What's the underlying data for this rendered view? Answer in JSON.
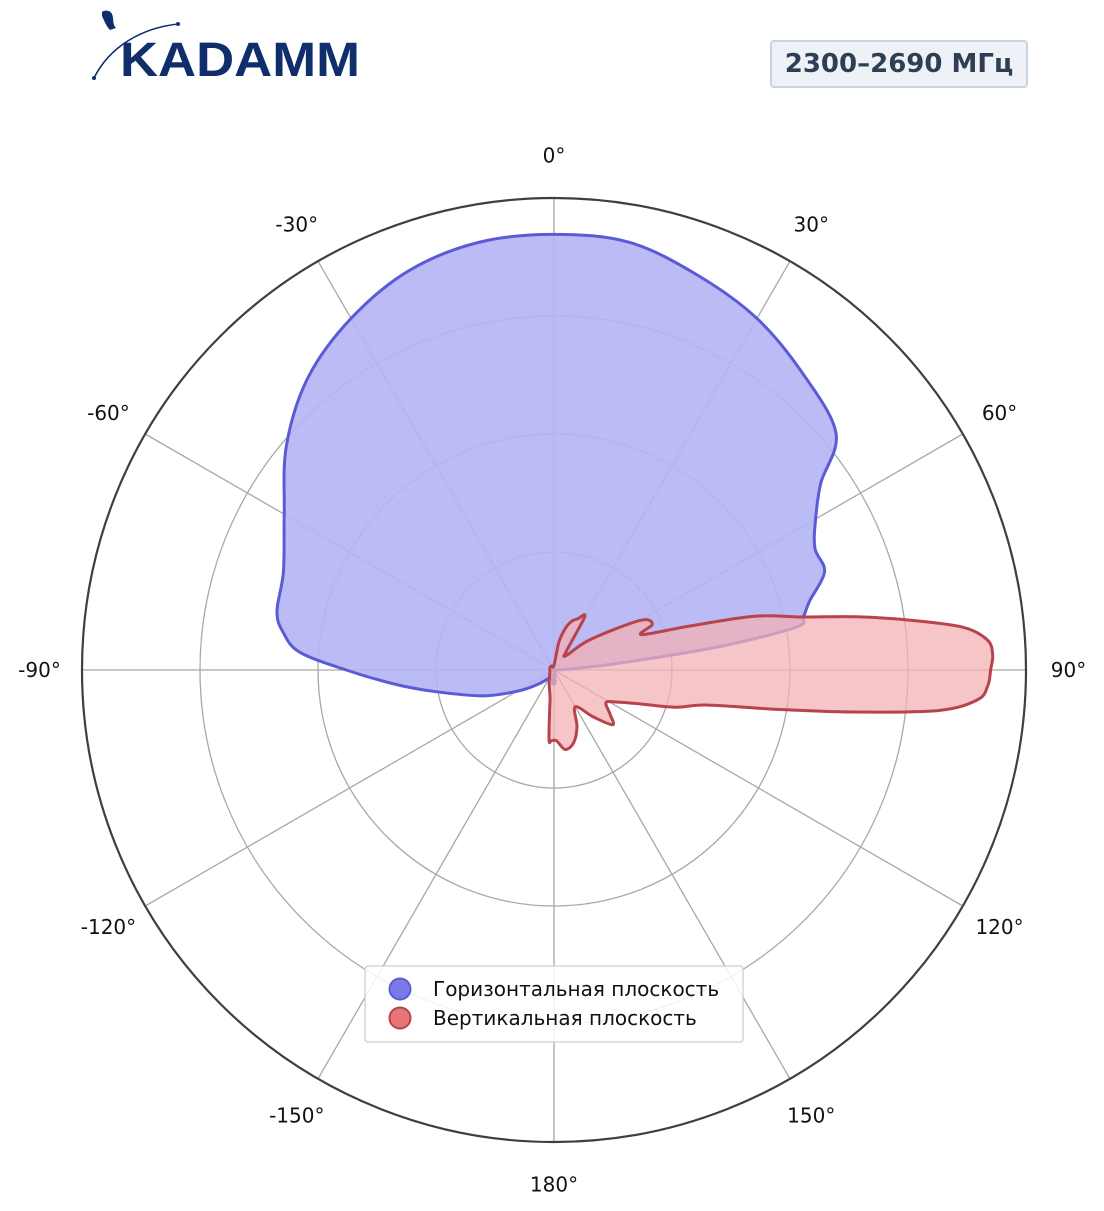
{
  "brand": {
    "logo_text": "KADAMM"
  },
  "badge": {
    "label": "2300–2690 МГц"
  },
  "chart_data": {
    "type": "polar-area",
    "title": "",
    "theta_direction": "clockwise",
    "theta_zero": "top",
    "angle_ticks": [
      {
        "angle": 0,
        "label": "0°"
      },
      {
        "angle": 30,
        "label": "30°"
      },
      {
        "angle": 60,
        "label": "60°"
      },
      {
        "angle": 90,
        "label": "90°"
      },
      {
        "angle": 120,
        "label": "120°"
      },
      {
        "angle": 150,
        "label": "150°"
      },
      {
        "angle": 180,
        "label": "180°"
      },
      {
        "angle": -150,
        "label": "-150°"
      },
      {
        "angle": -120,
        "label": "-120°"
      },
      {
        "angle": -90,
        "label": "-90°"
      },
      {
        "angle": -60,
        "label": "-60°"
      },
      {
        "angle": -30,
        "label": "-30°"
      }
    ],
    "radial_range": [
      0,
      1
    ],
    "radial_gridlines": [
      0.25,
      0.5,
      0.75,
      1.0
    ],
    "grid": true,
    "legend_position": "bottom-center",
    "series": [
      {
        "name": "Горизонтальная плоскость",
        "color": "#5b5bd6",
        "fill": "#b4b4f4",
        "marker_fill": "#7b7be8",
        "points": [
          [
            0,
            0.923
          ],
          [
            10,
            0.92
          ],
          [
            20,
            0.89
          ],
          [
            30,
            0.86
          ],
          [
            40,
            0.82
          ],
          [
            50,
            0.78
          ],
          [
            55,
            0.69
          ],
          [
            60,
            0.64
          ],
          [
            65,
            0.61
          ],
          [
            70,
            0.61
          ],
          [
            75,
            0.56
          ],
          [
            78,
            0.54
          ],
          [
            80,
            0.52
          ],
          [
            82,
            0.35
          ],
          [
            84,
            0.14
          ],
          [
            86,
            0.04
          ],
          [
            88,
            0.02
          ],
          [
            90,
            0
          ],
          [
            120,
            0
          ],
          [
            150,
            0
          ],
          [
            170,
            0.01
          ],
          [
            175,
            0.03
          ],
          [
            178,
            0.01
          ],
          [
            180,
            0.01
          ],
          [
            -178,
            0.02
          ],
          [
            -175,
            0.03
          ],
          [
            -170,
            0.02
          ],
          [
            -160,
            0.02
          ],
          [
            -150,
            0.02
          ],
          [
            -130,
            0.05
          ],
          [
            -120,
            0.09
          ],
          [
            -110,
            0.16
          ],
          [
            -100,
            0.26
          ],
          [
            -95,
            0.34
          ],
          [
            -90,
            0.44
          ],
          [
            -86,
            0.54
          ],
          [
            -82,
            0.58
          ],
          [
            -78,
            0.6
          ],
          [
            -70,
            0.61
          ],
          [
            -60,
            0.66
          ],
          [
            -50,
            0.74
          ],
          [
            -40,
            0.81
          ],
          [
            -30,
            0.86
          ],
          [
            -20,
            0.9
          ],
          [
            -10,
            0.92
          ]
        ]
      },
      {
        "name": "Вертикальная плоскость",
        "color": "#b8434d",
        "fill": "#f1b1b5",
        "marker_fill": "#e87478",
        "points": [
          [
            0,
            0.01
          ],
          [
            10,
            0.06
          ],
          [
            15,
            0.09
          ],
          [
            20,
            0.11
          ],
          [
            25,
            0.12
          ],
          [
            30,
            0.13
          ],
          [
            33,
            0.05
          ],
          [
            40,
            0.04
          ],
          [
            50,
            0.1
          ],
          [
            60,
            0.21
          ],
          [
            65,
            0.23
          ],
          [
            68,
            0.2
          ],
          [
            72,
            0.3
          ],
          [
            75,
            0.44
          ],
          [
            78,
            0.54
          ],
          [
            80,
            0.65
          ],
          [
            82,
            0.76
          ],
          [
            84,
            0.87
          ],
          [
            86,
            0.92
          ],
          [
            88,
            0.93
          ],
          [
            90,
            0.925
          ],
          [
            92,
            0.92
          ],
          [
            94,
            0.9
          ],
          [
            96,
            0.82
          ],
          [
            98,
            0.64
          ],
          [
            100,
            0.48
          ],
          [
            103,
            0.33
          ],
          [
            107,
            0.27
          ],
          [
            112,
            0.19
          ],
          [
            117,
            0.15
          ],
          [
            122,
            0.13
          ],
          [
            128,
            0.15
          ],
          [
            133,
            0.17
          ],
          [
            140,
            0.13
          ],
          [
            150,
            0.09
          ],
          [
            158,
            0.13
          ],
          [
            165,
            0.16
          ],
          [
            172,
            0.17
          ],
          [
            178,
            0.15
          ],
          [
            -178,
            0.15
          ],
          [
            -176,
            0.15
          ],
          [
            -174,
            0.09
          ],
          [
            -172,
            0.06
          ],
          [
            -160,
            0.03
          ],
          [
            -120,
            0.01
          ],
          [
            -60,
            0.01
          ],
          [
            -30,
            0.01
          ]
        ]
      }
    ]
  }
}
